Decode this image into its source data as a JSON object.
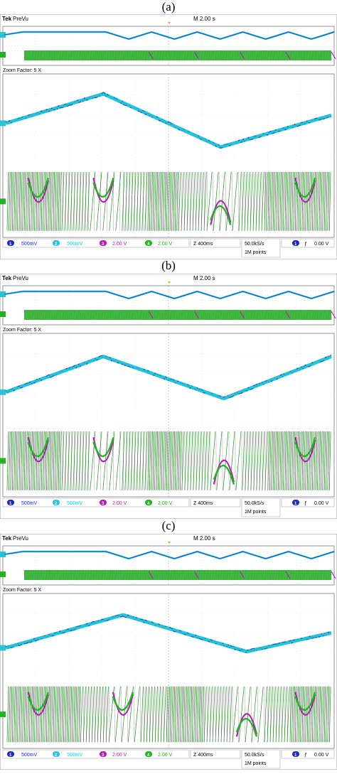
{
  "panels": [
    {
      "label": "(a)",
      "header": {
        "brand": "Tek",
        "mode": "PreVu",
        "timebase": "M 2.00 s"
      },
      "zoom_label": "Zoom Factor: 5 X",
      "channels": [
        {
          "num": "1",
          "scale": "500mV",
          "color": "#1f2bbf"
        },
        {
          "num": "2",
          "scale": "500mV",
          "color": "#27c4d6"
        },
        {
          "num": "3",
          "scale": "2.00 V",
          "color": "#b11fb3"
        },
        {
          "num": "4",
          "scale": "2.00 V",
          "color": "#22b322"
        }
      ],
      "zoom_time": "Z 400ms",
      "sample_rate": "50.0kS/s",
      "record_length": "1M points",
      "trigger": {
        "num": "1",
        "slope": "ƒ",
        "level": "0.00 V"
      }
    },
    {
      "label": "(b)",
      "header": {
        "brand": "Tek",
        "mode": "PreVu",
        "timebase": "M 2.00 s"
      },
      "zoom_label": "Zoom Factor: 5 X",
      "channels": [
        {
          "num": "1",
          "scale": "500mV",
          "color": "#1f2bbf"
        },
        {
          "num": "2",
          "scale": "500mV",
          "color": "#27c4d6"
        },
        {
          "num": "3",
          "scale": "2.00 V",
          "color": "#b11fb3"
        },
        {
          "num": "4",
          "scale": "2.00 V",
          "color": "#22b322"
        }
      ],
      "zoom_time": "Z 400ms",
      "sample_rate": "50.0kS/s",
      "record_length": "1M points",
      "trigger": {
        "num": "1",
        "slope": "ƒ",
        "level": "0.00 V"
      }
    },
    {
      "label": "(c)",
      "header": {
        "brand": "Tek",
        "mode": "PreVu",
        "timebase": "M 2.00 s"
      },
      "zoom_label": "Zoom Factor: 5 X",
      "channels": [
        {
          "num": "1",
          "scale": "500mV",
          "color": "#1f2bbf"
        },
        {
          "num": "2",
          "scale": "500mV",
          "color": "#27c4d6"
        },
        {
          "num": "3",
          "scale": "2.00 V",
          "color": "#b11fb3"
        },
        {
          "num": "4",
          "scale": "2.00 V",
          "color": "#22b322"
        }
      ],
      "zoom_time": "Z 400ms",
      "sample_rate": "50.0kS/s",
      "record_length": "1M points",
      "trigger": {
        "num": "1",
        "slope": "ƒ",
        "level": "0.00 V"
      }
    }
  ],
  "chart_data": [
    {
      "type": "line",
      "title": "(a)",
      "x_divisions": 10,
      "series": [
        {
          "channel": "1",
          "shape": "ramp-then-triangle",
          "overview_triangle_cycles": 5,
          "zoom_vertices_t": [
            0,
            0.3,
            0.66,
            1.0
          ],
          "zoom_vertices_level": [
            0.45,
            0.82,
            0.15,
            0.55
          ]
        },
        {
          "channel": "2",
          "shape": "ramp-then-triangle",
          "overview_triangle_cycles": 5
        },
        {
          "channel": "3",
          "shape": "sawtooth-switching"
        },
        {
          "channel": "4",
          "shape": "sawtooth-switching"
        }
      ]
    },
    {
      "type": "line",
      "title": "(b)",
      "x_divisions": 10,
      "series": [
        {
          "channel": "1",
          "shape": "ramp-then-triangle",
          "overview_triangle_cycles": 5,
          "zoom_vertices_t": [
            0,
            0.3,
            0.67,
            1.0
          ],
          "zoom_vertices_level": [
            0.33,
            0.78,
            0.25,
            0.78
          ]
        },
        {
          "channel": "2",
          "shape": "ramp-then-triangle",
          "overview_triangle_cycles": 5
        },
        {
          "channel": "3",
          "shape": "sawtooth-switching"
        },
        {
          "channel": "4",
          "shape": "sawtooth-switching"
        }
      ]
    },
    {
      "type": "line",
      "title": "(c)",
      "x_divisions": 10,
      "series": [
        {
          "channel": "1",
          "shape": "ramp-then-triangle",
          "overview_triangle_cycles": 5,
          "zoom_vertices_t": [
            0,
            0.36,
            0.74,
            1.0
          ],
          "zoom_vertices_level": [
            0.35,
            0.79,
            0.3,
            0.55
          ]
        },
        {
          "channel": "2",
          "shape": "ramp-then-triangle",
          "overview_triangle_cycles": 5
        },
        {
          "channel": "3",
          "shape": "sawtooth-switching"
        },
        {
          "channel": "4",
          "shape": "sawtooth-switching"
        }
      ]
    }
  ]
}
